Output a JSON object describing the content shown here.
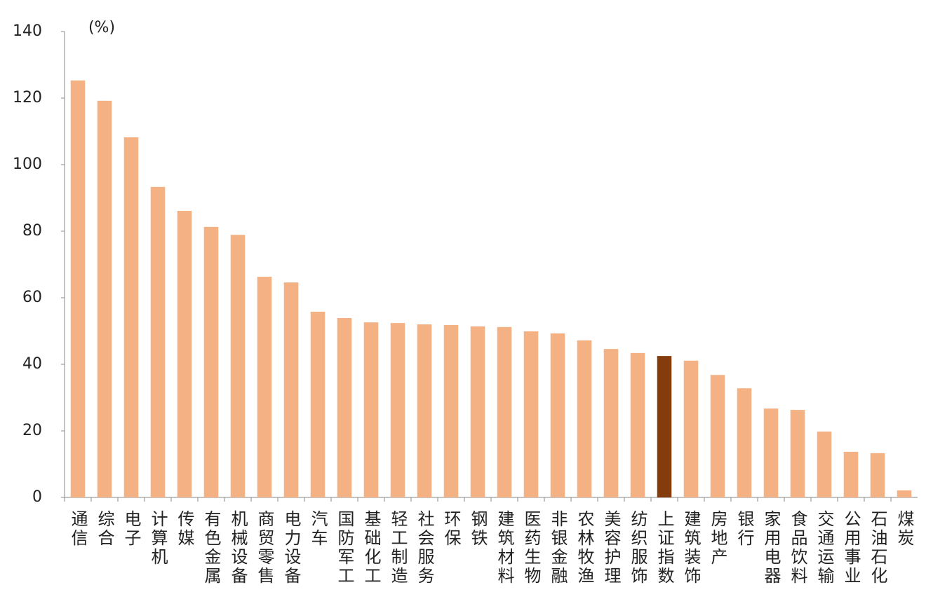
{
  "chart_data": {
    "type": "bar",
    "y_label": "(%)",
    "categories": [
      "通信",
      "综合",
      "电子",
      "计算机",
      "传媒",
      "有色金属",
      "机械设备",
      "商贸零售",
      "电力设备",
      "汽车",
      "国防军工",
      "基础化工",
      "轻工制造",
      "社会服务",
      "环保",
      "钢铁",
      "建筑材料",
      "医药生物",
      "非银金融",
      "农林牧渔",
      "美容护理",
      "纺织服饰",
      "上证指数",
      "建筑装饰",
      "房地产",
      "银行",
      "家用电器",
      "食品饮料",
      "交通运输",
      "公用事业",
      "石油石化",
      "煤炭"
    ],
    "values": [
      125.3,
      119.2,
      108.2,
      93.3,
      86.1,
      81.3,
      78.9,
      66.3,
      64.6,
      55.8,
      53.9,
      52.6,
      52.4,
      52.0,
      51.8,
      51.4,
      51.2,
      49.9,
      49.3,
      47.2,
      44.6,
      43.4,
      42.5,
      41.1,
      36.8,
      32.8,
      26.7,
      26.3,
      19.8,
      13.7,
      13.3,
      2.1
    ],
    "color": "#f4b183",
    "highlight_category": "上证指数",
    "highlight_color": "#843c0c",
    "ylim": [
      0,
      140
    ],
    "yticks": [
      0,
      20,
      40,
      60,
      80,
      100,
      120,
      140
    ]
  }
}
